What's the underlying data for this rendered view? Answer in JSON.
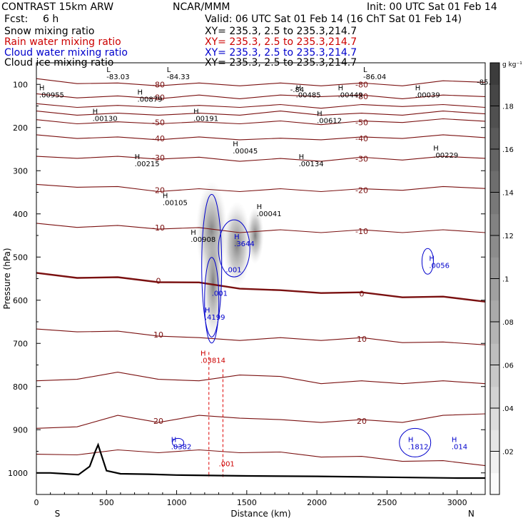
{
  "header": {
    "model": "CONTRAST 15km ARW",
    "org": "NCAR/MMM",
    "init": "Init: 00 UTC Sat 01 Feb 14",
    "fcst_label": "Fcst:",
    "fcst_value": "6 h",
    "valid": "Valid: 06 UTC Sat 01 Feb 14 (16 ChT Sat 01 Feb 14)",
    "fields": [
      {
        "name": "Snow mixing ratio",
        "color": "#000000",
        "xy": "XY= 235.3, 2.5 to 235.3,214.7"
      },
      {
        "name": "Rain water mixing ratio",
        "color": "#cc0000",
        "xy": "XY= 235.3, 2.5 to 235.3,214.7"
      },
      {
        "name": "Cloud water mixing ratio",
        "color": "#0000cc",
        "xy": "XY= 235.3, 2.5 to 235.3,214.7"
      },
      {
        "name": "Cloud ice mixing ratio",
        "color": "#000000",
        "xy": "XY= 235.3, 2.5 to 235.3,214.7"
      }
    ]
  },
  "chart_data": {
    "type": "contour",
    "ylabel": "Pressure (hPa)",
    "xlabel": "Distance (km)",
    "x_range": [
      0,
      3200
    ],
    "y_range": [
      1050,
      50
    ],
    "x_ticks": [
      0,
      500,
      1000,
      1500,
      2000,
      2500,
      3000
    ],
    "y_ticks": [
      100,
      200,
      300,
      400,
      500,
      600,
      700,
      800,
      900,
      1000
    ],
    "left_end": "S",
    "right_end": "N",
    "colorbar": {
      "unit": "g kg⁻¹",
      "ticks": [
        ".02",
        ".04",
        ".06",
        ".08",
        ".1",
        ".12",
        ".14",
        ".16",
        ".18"
      ],
      "range": [
        0,
        0.2
      ]
    },
    "temperature_contours": [
      {
        "label": "-80",
        "y": [
          90,
          95,
          100,
          100,
          100,
          100,
          100,
          100,
          100,
          100,
          95,
          92
        ]
      },
      {
        "label": "-80",
        "y": [
          125,
          128,
          130,
          130,
          128,
          130,
          128,
          125,
          128,
          130,
          128,
          125
        ]
      },
      {
        "label": "",
        "y": [
          148,
          150,
          152,
          150,
          152,
          150,
          150,
          152,
          150,
          148,
          150,
          150
        ]
      },
      {
        "label": "",
        "y": [
          165,
          168,
          170,
          168,
          170,
          168,
          165,
          168,
          170,
          168,
          165,
          165
        ]
      },
      {
        "label": "-50",
        "y": [
          185,
          188,
          190,
          188,
          190,
          188,
          188,
          190,
          188,
          185,
          183,
          182
        ]
      },
      {
        "label": "-40",
        "y": [
          220,
          222,
          225,
          225,
          225,
          225,
          228,
          225,
          225,
          222,
          220,
          220
        ]
      },
      {
        "label": "-30",
        "y": [
          270,
          268,
          270,
          270,
          272,
          275,
          275,
          275,
          272,
          272,
          270,
          268
        ]
      },
      {
        "label": "-20",
        "y": [
          335,
          335,
          340,
          345,
          345,
          345,
          345,
          345,
          345,
          342,
          340,
          338
        ]
      },
      {
        "label": "-10",
        "y": [
          425,
          428,
          430,
          432,
          435,
          440,
          440,
          440,
          440,
          440,
          440,
          440
        ]
      },
      {
        "label": "0",
        "y": [
          540,
          545,
          550,
          555,
          562,
          570,
          580,
          580,
          585,
          590,
          595,
          600
        ]
      },
      {
        "label": "10",
        "y": [
          670,
          670,
          675,
          680,
          690,
          690,
          690,
          690,
          690,
          695,
          700,
          700
        ]
      },
      {
        "label": "",
        "y": [
          790,
          780,
          770,
          780,
          790,
          770,
          780,
          790,
          790,
          790,
          790,
          790
        ]
      },
      {
        "label": "20",
        "y": [
          900,
          890,
          870,
          880,
          870,
          870,
          880,
          880,
          880,
          880,
          870,
          860
        ]
      },
      {
        "label": "",
        "y": [
          960,
          955,
          950,
          950,
          950,
          950,
          955,
          960,
          965,
          970,
          975,
          980
        ]
      }
    ],
    "contour_x": [
      0,
      290,
      580,
      870,
      1160,
      1450,
      1740,
      2030,
      2320,
      2610,
      2900,
      3200
    ],
    "surface": {
      "x": [
        0,
        100,
        200,
        300,
        380,
        420,
        440,
        460,
        500,
        600,
        800,
        1000,
        1500,
        2000,
        2500,
        3000,
        3200
      ],
      "p": [
        1000,
        1000,
        1002,
        1004,
        985,
        950,
        935,
        955,
        995,
        1002,
        1003,
        1005,
        1007,
        1008,
        1010,
        1012,
        1012
      ]
    },
    "snow_ice_labels": [
      {
        "kind": "L",
        "value": "-83.03",
        "x": 500,
        "p": 88
      },
      {
        "kind": "L",
        "value": "-84.33",
        "x": 930,
        "p": 88
      },
      {
        "kind": "L",
        "value": "-86.04",
        "x": 2330,
        "p": 88
      },
      {
        "kind": "",
        "value": "-85.",
        "x": 3140,
        "p": 100
      },
      {
        "kind": "H",
        "value": ".00955",
        "x": 20,
        "p": 130
      },
      {
        "kind": "H",
        "value": ".00879",
        "x": 720,
        "p": 140
      },
      {
        "kind": "H",
        "value": ".00130",
        "x": 400,
        "p": 185
      },
      {
        "kind": "H",
        "value": ".00191",
        "x": 1120,
        "p": 185
      },
      {
        "kind": "H",
        "value": ".00485",
        "x": 1850,
        "p": 130
      },
      {
        "kind": "H",
        "value": ".00449",
        "x": 2150,
        "p": 130
      },
      {
        "kind": "H",
        "value": ".00039",
        "x": 2700,
        "p": 130
      },
      {
        "kind": "H",
        "value": ".00612",
        "x": 2000,
        "p": 190
      },
      {
        "kind": "H",
        "value": ".00045",
        "x": 1400,
        "p": 260
      },
      {
        "kind": "H",
        "value": ".00215",
        "x": 700,
        "p": 290
      },
      {
        "kind": "H",
        "value": ".00134",
        "x": 1870,
        "p": 290
      },
      {
        "kind": "H",
        "value": ".00229",
        "x": 2830,
        "p": 270
      },
      {
        "kind": "H",
        "value": ".00105",
        "x": 900,
        "p": 380
      },
      {
        "kind": "H",
        "value": ".00041",
        "x": 1570,
        "p": 405
      },
      {
        "kind": "H",
        "value": ".00908",
        "x": 1100,
        "p": 465
      },
      {
        "kind": "",
        "value": "-.84",
        "x": 1810,
        "p": 118
      }
    ],
    "cloud_water_labels": [
      {
        "kind": "H",
        "value": ".3644",
        "x": 1410,
        "p": 475
      },
      {
        "kind": "",
        "value": ".001",
        "x": 1350,
        "p": 535
      },
      {
        "kind": "",
        "value": ".001",
        "x": 1250,
        "p": 590
      },
      {
        "kind": "H",
        "value": ".4199",
        "x": 1200,
        "p": 645
      },
      {
        "kind": "H",
        "value": ".0056",
        "x": 2800,
        "p": 525
      },
      {
        "kind": "H",
        "value": ".0382",
        "x": 960,
        "p": 945
      },
      {
        "kind": "H",
        "value": ".1812",
        "x": 2650,
        "p": 945
      },
      {
        "kind": "H",
        "value": ".014",
        "x": 2960,
        "p": 945
      }
    ],
    "rain_labels": [
      {
        "kind": "H",
        "value": ".03814",
        "x": 1170,
        "p": 745
      },
      {
        "kind": "",
        "value": ".001",
        "x": 1300,
        "p": 985
      }
    ]
  }
}
